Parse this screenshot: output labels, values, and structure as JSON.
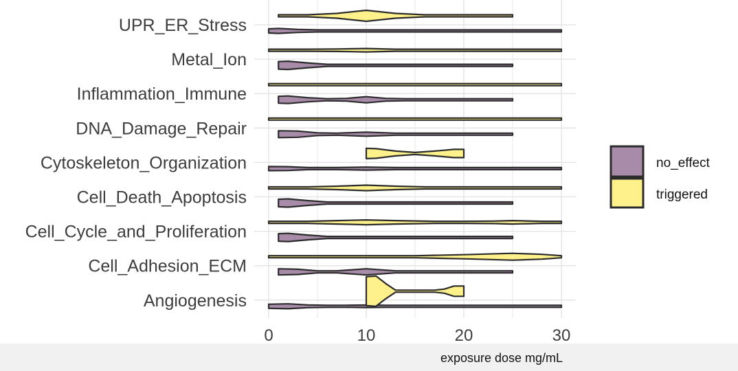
{
  "colors": {
    "no_effect": "#a78ba9",
    "triggered": "#fef18c",
    "outline": "#2b2b2b",
    "grid": "#e2e2e2",
    "footer": "#f1f1f1"
  },
  "chart_data": {
    "type": "violin",
    "orientation": "horizontal",
    "title": "",
    "xlabel": "exposure dose mg/mL",
    "ylabel": "",
    "xlim": [
      0,
      30
    ],
    "x_ticks": [
      0,
      10,
      20,
      30
    ],
    "grid": true,
    "legend_position": "right",
    "legend": [
      {
        "key": "no_effect",
        "label": "no_effect"
      },
      {
        "key": "triggered",
        "label": "triggered"
      }
    ],
    "categories": [
      "UPR_ER_Stress",
      "Metal_Ion",
      "Inflammation_Immune",
      "DNA_Damage_Repair",
      "Cytoskeleton_Organization",
      "Cell_Death_Apoptosis",
      "Cell_Cycle_and_Proliferation",
      "Cell_Adhesion_ECM",
      "Angiogenesis"
    ],
    "series": [
      {
        "name": "no_effect",
        "violins": [
          {
            "category": "UPR_ER_Stress",
            "range": [
              0,
              30
            ],
            "density": [
              [
                0,
                0.3
              ],
              [
                1,
                0.36
              ],
              [
                3,
                0.22
              ],
              [
                5,
                0.06
              ],
              [
                7,
                0.03
              ],
              [
                10,
                0.12
              ],
              [
                13,
                0.04
              ],
              [
                16,
                0.02
              ],
              [
                20,
                0.02
              ],
              [
                25,
                0.03
              ],
              [
                28,
                0.02
              ],
              [
                30,
                0.01
              ]
            ]
          },
          {
            "category": "Metal_Ion",
            "range": [
              1,
              25
            ],
            "density": [
              [
                1,
                0.55
              ],
              [
                2,
                0.6
              ],
              [
                4,
                0.35
              ],
              [
                6,
                0.1
              ],
              [
                8,
                0.06
              ],
              [
                10,
                0.1
              ],
              [
                12,
                0.06
              ],
              [
                15,
                0.03
              ],
              [
                20,
                0.02
              ],
              [
                25,
                0.02
              ]
            ]
          },
          {
            "category": "Inflammation_Immune",
            "range": [
              1,
              25
            ],
            "density": [
              [
                1,
                0.5
              ],
              [
                2,
                0.55
              ],
              [
                4,
                0.3
              ],
              [
                6,
                0.1
              ],
              [
                8,
                0.2
              ],
              [
                10,
                0.45
              ],
              [
                12,
                0.2
              ],
              [
                14,
                0.05
              ],
              [
                18,
                0.03
              ],
              [
                22,
                0.03
              ],
              [
                25,
                0.02
              ]
            ]
          },
          {
            "category": "DNA_Damage_Repair",
            "range": [
              1,
              25
            ],
            "density": [
              [
                1,
                0.5
              ],
              [
                3,
                0.45
              ],
              [
                5,
                0.2
              ],
              [
                7,
                0.1
              ],
              [
                10,
                0.3
              ],
              [
                13,
                0.1
              ],
              [
                16,
                0.04
              ],
              [
                20,
                0.03
              ],
              [
                23,
                0.08
              ],
              [
                25,
                0.1
              ]
            ]
          },
          {
            "category": "Cytoskeleton_Organization",
            "range": [
              0,
              30
            ],
            "density": [
              [
                0,
                0.3
              ],
              [
                2,
                0.28
              ],
              [
                4,
                0.12
              ],
              [
                7,
                0.06
              ],
              [
                10,
                0.22
              ],
              [
                13,
                0.06
              ],
              [
                16,
                0.02
              ],
              [
                20,
                0.02
              ],
              [
                25,
                0.03
              ],
              [
                30,
                0.01
              ]
            ]
          },
          {
            "category": "Cell_Death_Apoptosis",
            "range": [
              1,
              25
            ],
            "density": [
              [
                1,
                0.55
              ],
              [
                2,
                0.6
              ],
              [
                4,
                0.35
              ],
              [
                6,
                0.1
              ],
              [
                8,
                0.05
              ],
              [
                10,
                0.08
              ],
              [
                13,
                0.04
              ],
              [
                16,
                0.02
              ],
              [
                20,
                0.02
              ],
              [
                25,
                0.02
              ]
            ]
          },
          {
            "category": "Cell_Cycle_and_Proliferation",
            "range": [
              1,
              25
            ],
            "density": [
              [
                1,
                0.55
              ],
              [
                2,
                0.6
              ],
              [
                4,
                0.35
              ],
              [
                6,
                0.12
              ],
              [
                8,
                0.08
              ],
              [
                10,
                0.15
              ],
              [
                12,
                0.08
              ],
              [
                15,
                0.03
              ],
              [
                20,
                0.02
              ],
              [
                25,
                0.02
              ]
            ]
          },
          {
            "category": "Cell_Adhesion_ECM",
            "range": [
              1,
              25
            ],
            "density": [
              [
                1,
                0.45
              ],
              [
                3,
                0.38
              ],
              [
                5,
                0.15
              ],
              [
                7,
                0.15
              ],
              [
                10,
                0.45
              ],
              [
                13,
                0.15
              ],
              [
                16,
                0.04
              ],
              [
                20,
                0.03
              ],
              [
                25,
                0.02
              ]
            ]
          },
          {
            "category": "Angiogenesis",
            "range": [
              0,
              30
            ],
            "density": [
              [
                0,
                0.3
              ],
              [
                2,
                0.36
              ],
              [
                4,
                0.2
              ],
              [
                6,
                0.08
              ],
              [
                8,
                0.06
              ],
              [
                10,
                0.18
              ],
              [
                12,
                0.08
              ],
              [
                15,
                0.04
              ],
              [
                20,
                0.03
              ],
              [
                23,
                0.04
              ],
              [
                25,
                0.1
              ],
              [
                27,
                0.04
              ],
              [
                30,
                0.01
              ]
            ]
          }
        ]
      },
      {
        "name": "triggered",
        "violins": [
          {
            "category": "UPR_ER_Stress",
            "range": [
              1,
              25
            ],
            "density": [
              [
                1,
                0.02
              ],
              [
                4,
                0.05
              ],
              [
                7,
                0.35
              ],
              [
                10,
                0.8
              ],
              [
                13,
                0.35
              ],
              [
                16,
                0.06
              ],
              [
                20,
                0.03
              ],
              [
                25,
                0.02
              ]
            ]
          },
          {
            "category": "Metal_Ion",
            "range": [
              0,
              30
            ],
            "density": [
              [
                0,
                0.02
              ],
              [
                4,
                0.06
              ],
              [
                7,
                0.18
              ],
              [
                10,
                0.25
              ],
              [
                13,
                0.15
              ],
              [
                17,
                0.05
              ],
              [
                20,
                0.05
              ],
              [
                23,
                0.12
              ],
              [
                25,
                0.15
              ],
              [
                28,
                0.06
              ],
              [
                30,
                0.02
              ]
            ]
          },
          {
            "category": "Inflammation_Immune",
            "range": [
              0,
              30
            ],
            "density": [
              [
                0,
                0.02
              ],
              [
                5,
                0.05
              ],
              [
                10,
                0.12
              ],
              [
                15,
                0.06
              ],
              [
                20,
                0.06
              ],
              [
                25,
                0.12
              ],
              [
                30,
                0.02
              ]
            ]
          },
          {
            "category": "DNA_Damage_Repair",
            "range": [
              0,
              30
            ],
            "density": [
              [
                0,
                0.02
              ],
              [
                5,
                0.04
              ],
              [
                10,
                0.08
              ],
              [
                15,
                0.05
              ],
              [
                20,
                0.05
              ],
              [
                25,
                0.08
              ],
              [
                30,
                0.02
              ]
            ]
          },
          {
            "category": "Cytoskeleton_Organization",
            "range": [
              10,
              20
            ],
            "density": [
              [
                10,
                0.75
              ],
              [
                11,
                0.7
              ],
              [
                13,
                0.35
              ],
              [
                15,
                0.15
              ],
              [
                17,
                0.35
              ],
              [
                19,
                0.6
              ],
              [
                20,
                0.6
              ]
            ]
          },
          {
            "category": "Cell_Death_Apoptosis",
            "range": [
              0,
              30
            ],
            "density": [
              [
                0,
                0.02
              ],
              [
                4,
                0.06
              ],
              [
                7,
                0.25
              ],
              [
                10,
                0.4
              ],
              [
                13,
                0.25
              ],
              [
                16,
                0.08
              ],
              [
                20,
                0.04
              ],
              [
                25,
                0.06
              ],
              [
                30,
                0.02
              ]
            ]
          },
          {
            "category": "Cell_Cycle_and_Proliferation",
            "range": [
              0,
              30
            ],
            "density": [
              [
                0,
                0.02
              ],
              [
                4,
                0.1
              ],
              [
                7,
                0.25
              ],
              [
                10,
                0.35
              ],
              [
                13,
                0.25
              ],
              [
                17,
                0.1
              ],
              [
                20,
                0.08
              ],
              [
                23,
                0.18
              ],
              [
                25,
                0.25
              ],
              [
                28,
                0.1
              ],
              [
                30,
                0.02
              ]
            ]
          },
          {
            "category": "Cell_Adhesion_ECM",
            "range": [
              0,
              30
            ],
            "density": [
              [
                0,
                0.02
              ],
              [
                5,
                0.04
              ],
              [
                10,
                0.05
              ],
              [
                15,
                0.12
              ],
              [
                20,
                0.3
              ],
              [
                25,
                0.5
              ],
              [
                28,
                0.35
              ],
              [
                30,
                0.15
              ]
            ]
          },
          {
            "category": "Angiogenesis",
            "range": [
              10,
              20
            ],
            "density": [
              [
                10,
                2.1
              ],
              [
                11,
                2.2
              ],
              [
                12,
                1.1
              ],
              [
                13,
                0.05
              ],
              [
                17,
                0.05
              ],
              [
                18,
                0.3
              ],
              [
                19,
                0.75
              ],
              [
                20,
                0.75
              ]
            ]
          }
        ]
      }
    ]
  }
}
